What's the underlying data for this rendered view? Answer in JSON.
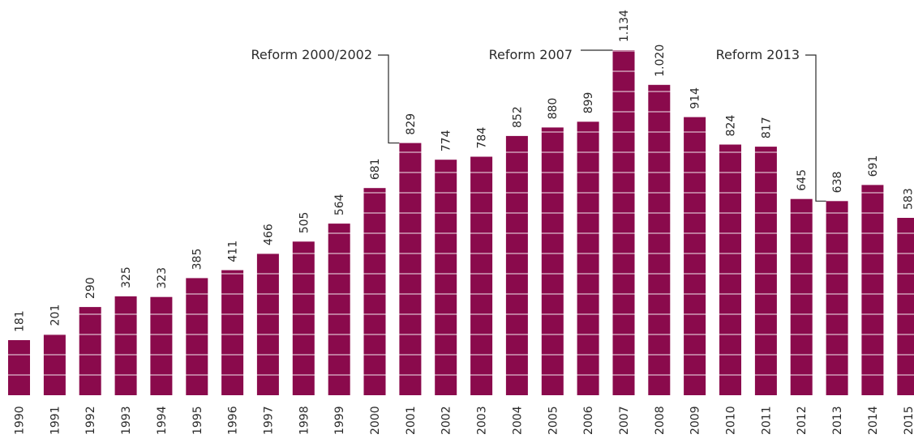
{
  "chart_data": {
    "type": "bar",
    "categories": [
      "1990",
      "1991",
      "1992",
      "1993",
      "1994",
      "1995",
      "1996",
      "1997",
      "1998",
      "1999",
      "2000",
      "2001",
      "2002",
      "2003",
      "2004",
      "2005",
      "2006",
      "2007",
      "2008",
      "2009",
      "2010",
      "2011",
      "2012",
      "2013",
      "2014",
      "2015"
    ],
    "values": [
      181,
      201,
      290,
      325,
      323,
      385,
      411,
      466,
      505,
      564,
      681,
      829,
      774,
      784,
      852,
      880,
      899,
      1134,
      1020,
      914,
      824,
      817,
      645,
      638,
      691,
      583
    ],
    "value_labels": [
      "181",
      "201",
      "290",
      "325",
      "323",
      "385",
      "411",
      "466",
      "505",
      "564",
      "681",
      "829",
      "774",
      "784",
      "852",
      "880",
      "899",
      "1.134",
      "1.020",
      "914",
      "824",
      "817",
      "645",
      "638",
      "691",
      "583"
    ],
    "annotations": [
      {
        "text": "Reform 2000/2002",
        "category": "2001"
      },
      {
        "text": "Reform 2007",
        "category": "2007"
      },
      {
        "text": "Reform 2013",
        "category": "2013"
      }
    ],
    "ylim": [
      0,
      1134
    ],
    "grid": "horizontal white lines across bars",
    "legend": "none"
  },
  "colors": {
    "bar": "#8a0a4c",
    "text": "#2a2a2a",
    "gridline": "#ffffff"
  }
}
